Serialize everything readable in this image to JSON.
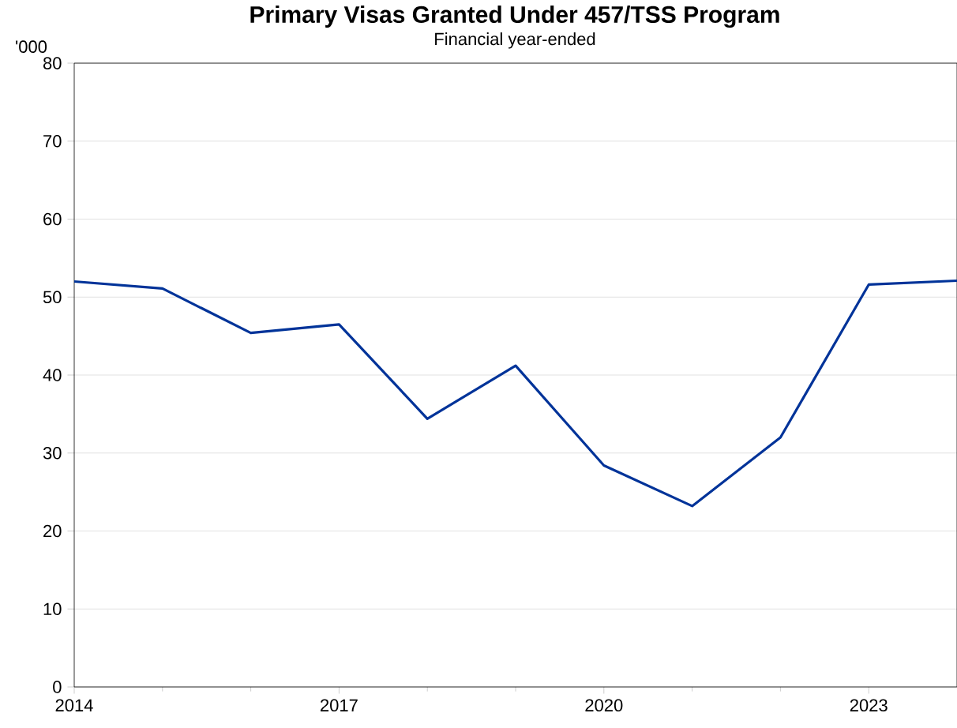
{
  "chart_data": {
    "type": "line",
    "title": "Primary Visas Granted Under 457/TSS Program",
    "subtitle": "Financial year-ended",
    "ylabel": "'000",
    "x": [
      2014,
      2015,
      2016,
      2017,
      2018,
      2019,
      2020,
      2021,
      2022,
      2023,
      2024
    ],
    "series": [
      {
        "color": "#003399",
        "values": [
          52.0,
          51.1,
          45.4,
          46.5,
          34.4,
          41.2,
          28.4,
          23.2,
          32.0,
          51.6,
          52.1
        ]
      }
    ],
    "xlim": [
      2014,
      2024
    ],
    "xticks": [
      2014,
      2017,
      2020,
      2023
    ],
    "ylim": [
      0,
      80
    ],
    "yticks": [
      0,
      10,
      20,
      30,
      40,
      50,
      60,
      70,
      80
    ],
    "grid": "y",
    "marker": "none",
    "line_style": "solid"
  }
}
